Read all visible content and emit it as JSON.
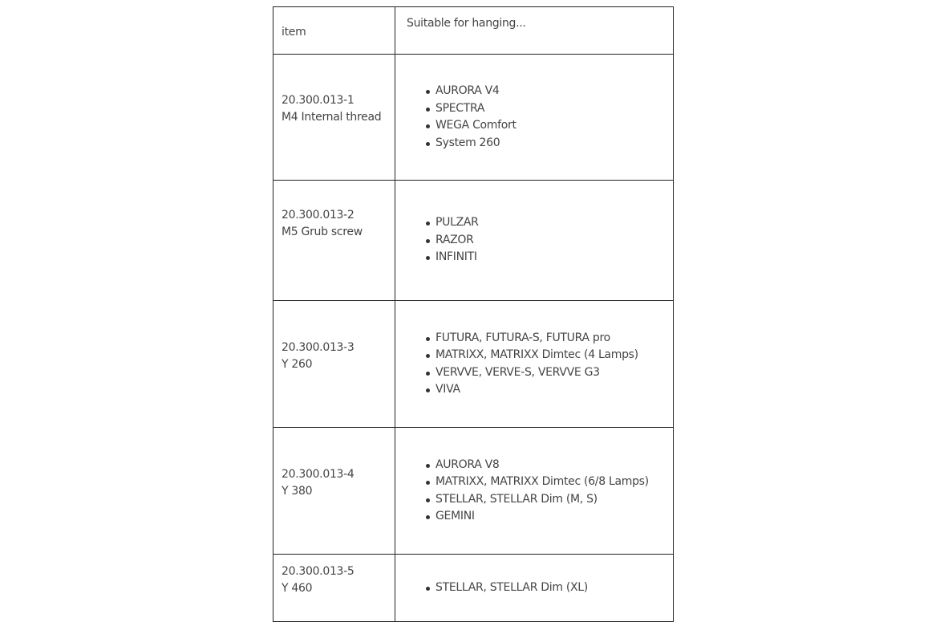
{
  "table": {
    "headers": [
      "item",
      "Suitable for hanging..."
    ],
    "rows": [
      {
        "code": "20.300.013-1",
        "desc": "M4 Internal thread",
        "items": [
          "AURORA V4",
          "SPECTRA",
          "WEGA Comfort",
          "System 260"
        ]
      },
      {
        "code": "20.300.013-2",
        "desc": "M5 Grub screw",
        "items": [
          "PULZAR",
          "RAZOR",
          "INFINITI"
        ]
      },
      {
        "code": "20.300.013-3",
        "desc": "Y 260",
        "items": [
          "FUTURA, FUTURA-S, FUTURA pro",
          "MATRIXX, MATRIXX Dimtec (4 Lamps)",
          "VERVVE, VERVE-S, VERVVE G3",
          "VIVA"
        ]
      },
      {
        "code": "20.300.013-4",
        "desc": "Y 380",
        "items": [
          "AURORA V8",
          "MATRIXX, MATRIXX Dimtec (6/8 Lamps)",
          "STELLAR, STELLAR Dim (M, S)",
          "GEMINI"
        ]
      },
      {
        "code": "20.300.013-5",
        "desc": "Y 460",
        "items": [
          "STELLAR, STELLAR Dim (XL)"
        ]
      }
    ]
  }
}
